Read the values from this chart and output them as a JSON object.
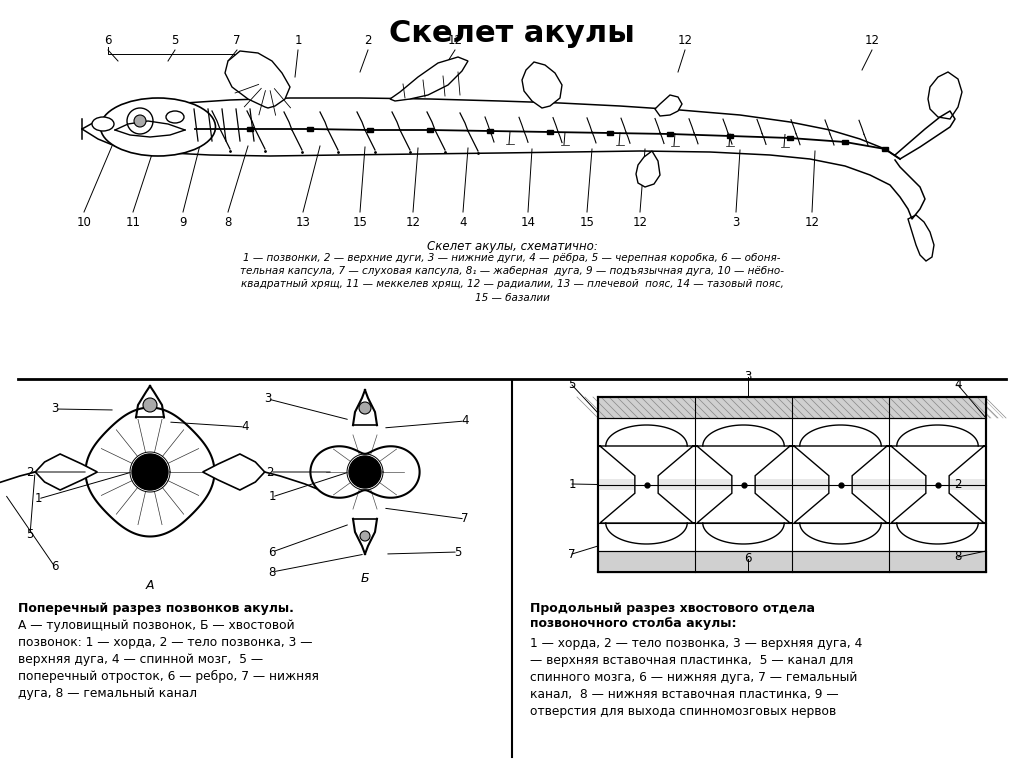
{
  "title": "Скелет акулы",
  "title_fontsize": 22,
  "title_fontweight": "bold",
  "background_color": "#ffffff",
  "caption_top_title": "Скелет акулы, схематично:",
  "caption_top_legend": "1 — позвонки, 2 — верхние дуги, 3 — нижние дуги, 4 — рёбра, 5 — черепная коробка, 6 — обоня-\nтельная капсула, 7 — слуховая капсула, 8₁ — жаберная  дуга, 9 — подъязычная дуга, 10 — нёбно-\nквадратный хрящ, 11 — меккелев хрящ, 12 — радиалии, 13 — плечевой  пояс, 14 — тазовый пояс,\n15 — базалии",
  "label_left_bold": "Поперечный разрез позвонков акулы.",
  "label_left_text": "А — туловищный позвонок, Б — хвостовой\nпозвонок: 1 — хорда, 2 — тело позвонка, 3 —\nверхняя дуга, 4 — спинной мозг,  5 —\nпоперечный отросток, 6 — ребро, 7 — нижняя\nдуга, 8 — гемальный канал",
  "label_right_bold": "Продольный разрез хвостового отдела\nпозвоночного столба акулы:",
  "label_right_text": "1 — хорда, 2 — тело позвонка, 3 — верхняя дуга, 4\n— верхняя вставочная пластинка,  5 — канал для\nспинного мозга, 6 — нижняя дуга, 7 — гемальный\nканал,  8 — нижняя вставочная пластинка, 9 —\nотверстия для выхода спинномозговых нервов",
  "top_numbers_upper": [
    [
      "6",
      108,
      727
    ],
    [
      "5",
      175,
      727
    ],
    [
      "7",
      237,
      727
    ],
    [
      "1",
      298,
      727
    ],
    [
      "2",
      368,
      727
    ],
    [
      "12",
      455,
      727
    ],
    [
      "12",
      685,
      727
    ],
    [
      "12",
      872,
      727
    ]
  ],
  "top_numbers_lower": [
    [
      "10",
      84,
      545
    ],
    [
      "11",
      133,
      545
    ],
    [
      "9",
      183,
      545
    ],
    [
      "8",
      228,
      545
    ],
    [
      "13",
      303,
      545
    ],
    [
      "15",
      360,
      545
    ],
    [
      "12",
      413,
      545
    ],
    [
      "4",
      463,
      545
    ],
    [
      "14",
      528,
      545
    ],
    [
      "15",
      587,
      545
    ],
    [
      "12",
      640,
      545
    ],
    [
      "3",
      736,
      545
    ],
    [
      "12",
      812,
      545
    ]
  ]
}
